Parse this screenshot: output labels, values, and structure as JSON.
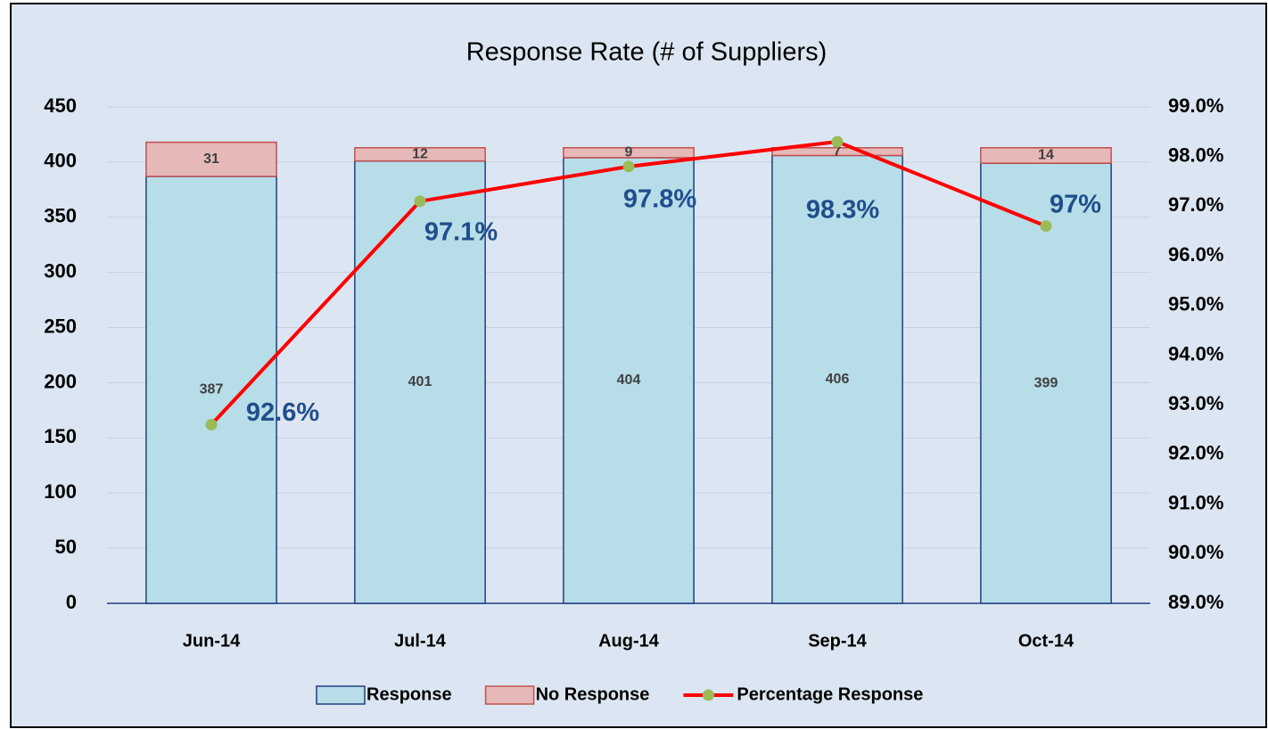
{
  "chart_data": {
    "type": "bar",
    "title": "Response Rate (# of Suppliers)",
    "categories": [
      "Jun-14",
      "Jul-14",
      "Aug-14",
      "Sep-14",
      "Oct-14"
    ],
    "stacked": true,
    "grid": true,
    "legend": "bottom",
    "series": [
      {
        "name": "Response",
        "color": "#b7dde8",
        "edge": "#1f3f7f",
        "values": [
          387,
          401,
          404,
          406,
          399
        ]
      },
      {
        "name": "No Response",
        "color": "#e6b9b8",
        "edge": "#c0504d",
        "values": [
          31,
          12,
          9,
          7,
          14
        ]
      },
      {
        "name": "Percentage Response",
        "type": "line",
        "axis": "y2",
        "color": "#ff0000",
        "marker_color": "#9bbb59",
        "values": [
          92.6,
          97.1,
          97.8,
          98.3,
          96.6
        ],
        "value_labels": [
          "92.6%",
          "97.1%",
          "97.8%",
          "98.3%",
          "97%"
        ]
      }
    ],
    "ylim": [
      0,
      450
    ],
    "yticks": [
      0,
      50,
      100,
      150,
      200,
      250,
      300,
      350,
      400,
      450
    ],
    "y2lim": [
      89,
      99
    ],
    "y2ticks": [
      {
        "value": 89,
        "label": "89.0%"
      },
      {
        "value": 90,
        "label": "90.0%"
      },
      {
        "value": 91,
        "label": "91.0%"
      },
      {
        "value": 92,
        "label": "92.0%"
      },
      {
        "value": 93,
        "label": "93.0%"
      },
      {
        "value": 94,
        "label": "94.0%"
      },
      {
        "value": 95,
        "label": "95.0%"
      },
      {
        "value": 96,
        "label": "96.0%"
      },
      {
        "value": 97,
        "label": "97.0%"
      },
      {
        "value": 98,
        "label": "98.0%"
      },
      {
        "value": 99,
        "label": "99.0%"
      }
    ]
  }
}
